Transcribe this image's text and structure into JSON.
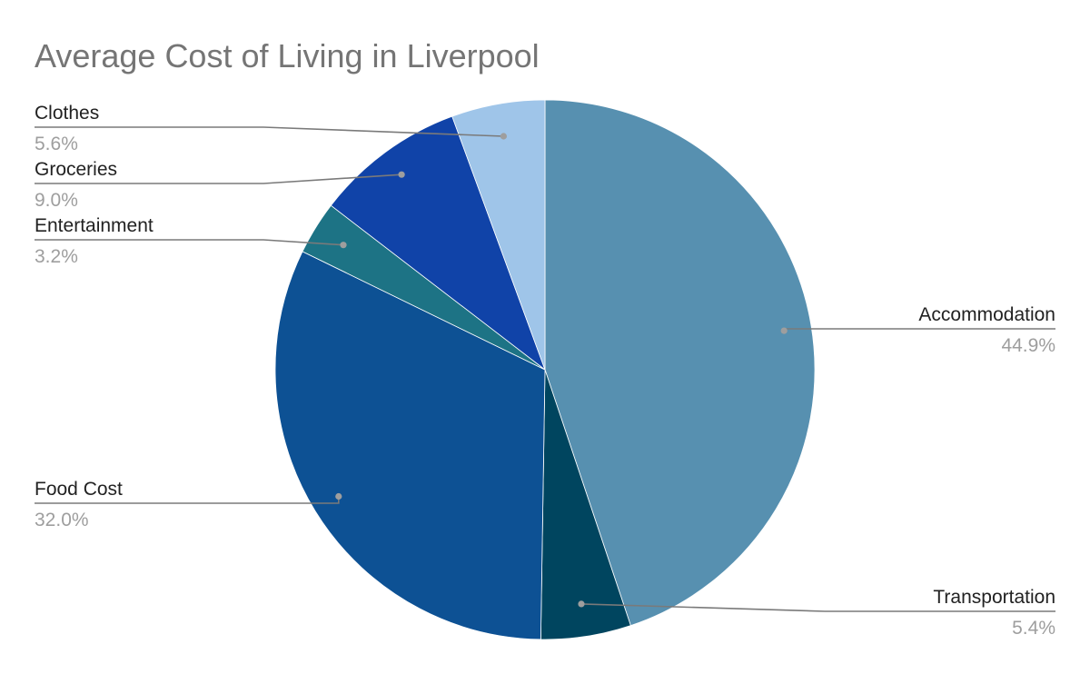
{
  "chart_data": {
    "type": "pie",
    "title": "Average Cost of Living in Liverpool",
    "start_angle_deg": 0,
    "direction": "clockwise",
    "slices": [
      {
        "label": "Accommodation",
        "value": 44.9,
        "display": "44.9%",
        "color": "#5790b0",
        "label_side": "right"
      },
      {
        "label": "Transportation",
        "value": 5.4,
        "display": "5.4%",
        "color": "#00455f",
        "label_side": "right"
      },
      {
        "label": "Food Cost",
        "value": 32.0,
        "display": "32.0%",
        "color": "#0d5194",
        "label_side": "left"
      },
      {
        "label": "Entertainment",
        "value": 3.2,
        "display": "3.2%",
        "color": "#1d7385",
        "label_side": "left"
      },
      {
        "label": "Groceries",
        "value": 9.0,
        "display": "9.0%",
        "color": "#1043a8",
        "label_side": "left"
      },
      {
        "label": "Clothes",
        "value": 5.6,
        "display": "5.6%",
        "color": "#9fc5e9",
        "label_side": "left"
      }
    ]
  }
}
